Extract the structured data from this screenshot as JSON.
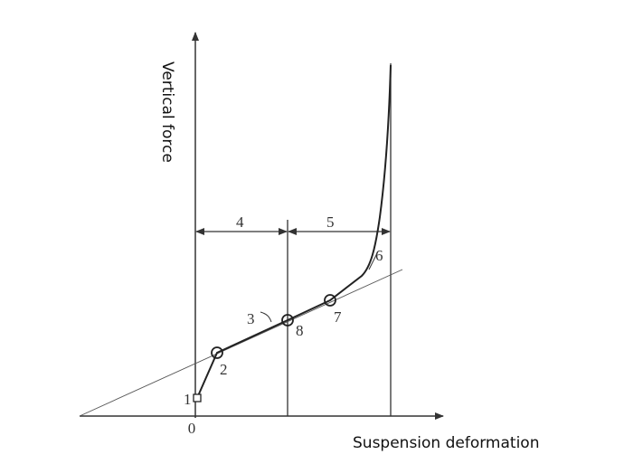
{
  "axes": {
    "y_label": "Vertical force",
    "x_label": "Suspension deformation",
    "origin": "0"
  },
  "labels": {
    "point_1": "1",
    "point_2": "2",
    "curve_3": "3",
    "span_4": "4",
    "span_5": "5",
    "line_6": "6",
    "point_7": "7",
    "point_8": "8"
  }
}
